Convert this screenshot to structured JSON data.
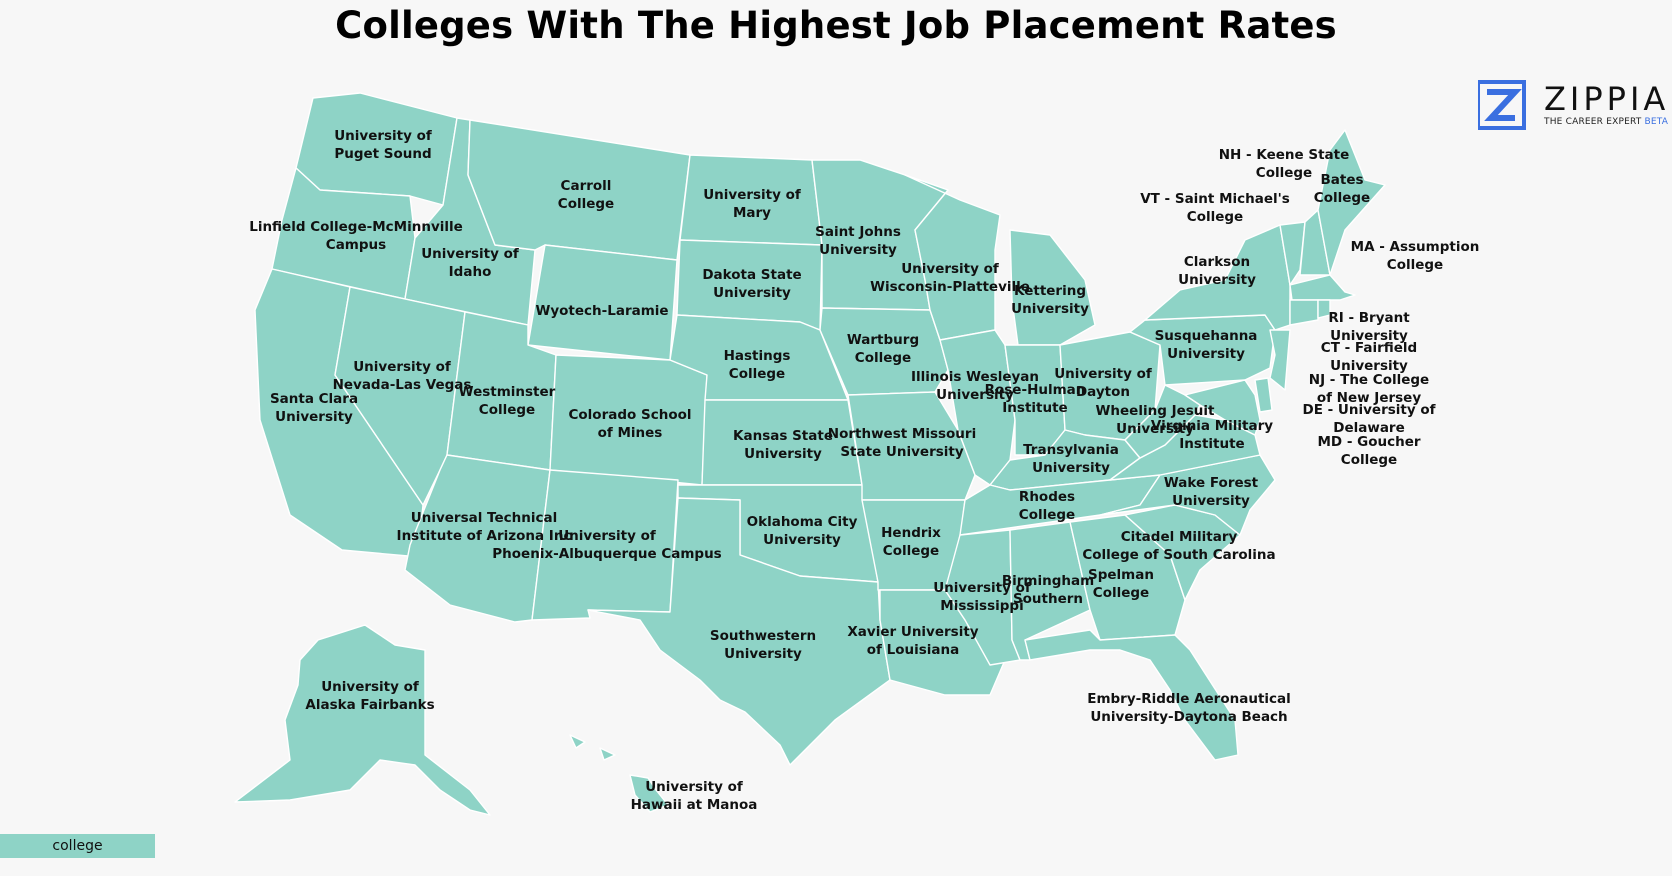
{
  "title": "Colleges With The Highest Job Placement Rates",
  "colors": {
    "state_fill": "#8ed3c6",
    "background": "#f7f7f7",
    "logo_blue": "#3a6fe0"
  },
  "logo": {
    "name": "ZIPPIA",
    "tagline": "THE CAREER EXPERT",
    "badge": "BETA",
    "icon": "zippia-z-logo-icon"
  },
  "legend": {
    "label": "college"
  },
  "labels": {
    "wa": [
      "University of",
      "Puget Sound"
    ],
    "or": [
      "Linfield College-McMinnville",
      "Campus"
    ],
    "id": [
      "University of",
      "Idaho"
    ],
    "mt": [
      "Carroll",
      "College"
    ],
    "nd": [
      "University of",
      "Mary"
    ],
    "mn": [
      "Saint Johns",
      "University"
    ],
    "wi": [
      "University of",
      "Wisconsin-Platteville"
    ],
    "mi": [
      "Kettering",
      "University"
    ],
    "sd": [
      "Dakota State",
      "University"
    ],
    "wy": [
      "Wyotech-Laramie"
    ],
    "ne": [
      "Hastings",
      "College"
    ],
    "ia": [
      "Wartburg",
      "College"
    ],
    "il": [
      "Illinois Wesleyan",
      "University"
    ],
    "in": [
      "Rose-Hulman",
      "Institute"
    ],
    "oh": [
      "University of",
      "Dayton"
    ],
    "pa": [
      "Susquehanna",
      "University"
    ],
    "ny": [
      "Clarkson",
      "University"
    ],
    "nv": [
      "University of",
      "Nevada-Las Vegas"
    ],
    "ca": [
      "Santa Clara",
      "University"
    ],
    "ut": [
      "Westminster",
      "College"
    ],
    "co": [
      "Colorado School",
      "of Mines"
    ],
    "ks": [
      "Kansas State",
      "University"
    ],
    "mo": [
      "Northwest Missouri",
      "State University"
    ],
    "wv": [
      "Wheeling Jesuit",
      "University"
    ],
    "va": [
      "Virginia Military",
      "Institute"
    ],
    "ky": [
      "Transylvania",
      "University"
    ],
    "tn": [
      "Rhodes",
      "College"
    ],
    "nc": [
      "Wake Forest",
      "University"
    ],
    "az": [
      "Universal Technical",
      "Institute of Arizona Inc"
    ],
    "nm": [
      "University of",
      "Phoenix-Albuquerque Campus"
    ],
    "ok": [
      "Oklahoma City",
      "University"
    ],
    "ar": [
      "Hendrix",
      "College"
    ],
    "ms": [
      "University of",
      "Mississippi"
    ],
    "al": [
      "Birmingham",
      "Southern"
    ],
    "ga": [
      "Spelman",
      "College"
    ],
    "sc": [
      "Citadel Military",
      "College of South Carolina"
    ],
    "tx": [
      "Southwestern",
      "University"
    ],
    "la": [
      "Xavier University",
      "of Louisiana"
    ],
    "fl": [
      "Embry-Riddle Aeronautical",
      "University-Daytona Beach"
    ],
    "ak": [
      "University of",
      "Alaska Fairbanks"
    ],
    "hi": [
      "University of",
      "Hawaii at Manoa"
    ],
    "me": [
      "Bates",
      "College"
    ],
    "nh": [
      "NH - Keene State",
      "College"
    ],
    "vt": [
      "VT - Saint Michael's",
      "College"
    ],
    "ma": [
      "MA - Assumption",
      "College"
    ],
    "ri": [
      "RI - Bryant",
      "University"
    ],
    "ct": [
      "CT - Fairfield",
      "University"
    ],
    "nj": [
      "NJ - The College",
      "of New Jersey"
    ],
    "de": [
      "DE - University of",
      "Delaware"
    ],
    "md": [
      "MD - Goucher",
      "College"
    ]
  }
}
